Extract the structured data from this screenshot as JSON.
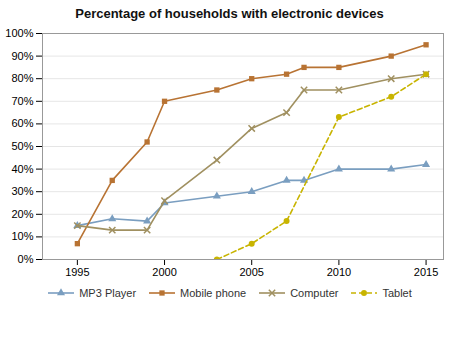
{
  "chart_data": {
    "type": "line",
    "title": "Percentage of households with electronic devices",
    "x": [
      1995,
      1997,
      1999,
      2000,
      2003,
      2005,
      2007,
      2008,
      2010,
      2013,
      2015
    ],
    "series": [
      {
        "name": "MP3 Player",
        "color": "#7a9ec0",
        "marker": "triangle",
        "line_style": "solid",
        "values": [
          15,
          18,
          17,
          25,
          28,
          30,
          35,
          35,
          40,
          40,
          42
        ]
      },
      {
        "name": "Mobile phone",
        "color": "#b87333",
        "marker": "square",
        "line_style": "solid",
        "values": [
          7,
          35,
          52,
          70,
          75,
          80,
          82,
          85,
          85,
          90,
          95
        ]
      },
      {
        "name": "Computer",
        "color": "#a09060",
        "marker": "x",
        "line_style": "solid",
        "values": [
          15,
          13,
          13,
          26,
          44,
          58,
          65,
          75,
          75,
          80,
          82
        ]
      },
      {
        "name": "Tablet",
        "color": "#c8b400",
        "marker": "circle",
        "line_style": "dashed",
        "values": [
          null,
          null,
          null,
          null,
          0,
          7,
          17,
          null,
          63,
          72,
          82
        ]
      }
    ],
    "xlim": [
      1993,
      2016
    ],
    "xticks": [
      1995,
      2000,
      2005,
      2010,
      2015
    ],
    "ylim": [
      0,
      100
    ],
    "yticks": [
      {
        "value": 0,
        "label": "0%"
      },
      {
        "value": 10,
        "label": "10%"
      },
      {
        "value": 20,
        "label": "20%"
      },
      {
        "value": 30,
        "label": "30%"
      },
      {
        "value": 40,
        "label": "40%"
      },
      {
        "value": 50,
        "label": "50%"
      },
      {
        "value": 60,
        "label": "60%"
      },
      {
        "value": 70,
        "label": "70%"
      },
      {
        "value": 80,
        "label": "80%"
      },
      {
        "value": 90,
        "label": "90%"
      },
      {
        "value": 100,
        "label": "100%"
      }
    ],
    "grid": "y",
    "legend": "bottom"
  }
}
